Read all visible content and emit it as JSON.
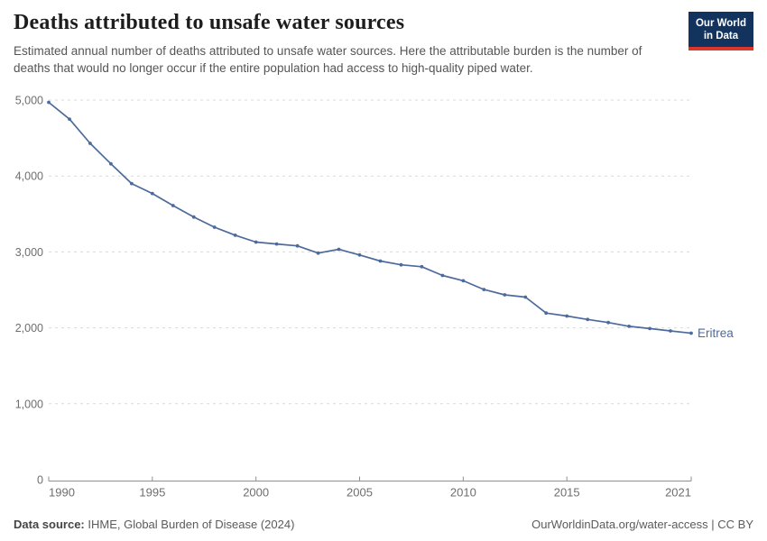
{
  "header": {
    "title": "Deaths attributed to unsafe water sources",
    "subtitle": "Estimated annual number of deaths attributed to unsafe water sources. Here the attributable burden is the number of deaths that would no longer occur if the entire population had access to high-quality piped water.",
    "logo": {
      "line1": "Our World",
      "line2": "in Data"
    }
  },
  "chart_data": {
    "type": "line",
    "title": "Deaths attributed to unsafe water sources",
    "x": [
      1990,
      1991,
      1992,
      1993,
      1994,
      1995,
      1996,
      1997,
      1998,
      1999,
      2000,
      2001,
      2002,
      2003,
      2004,
      2005,
      2006,
      2007,
      2008,
      2009,
      2010,
      2011,
      2012,
      2013,
      2014,
      2015,
      2016,
      2017,
      2018,
      2019,
      2020,
      2021
    ],
    "series": [
      {
        "name": "Eritrea",
        "color": "#4c6a9c",
        "values": [
          4970,
          4750,
          4430,
          4160,
          3900,
          3770,
          3610,
          3460,
          3325,
          3220,
          3130,
          3105,
          3080,
          2985,
          3035,
          2960,
          2880,
          2830,
          2805,
          2690,
          2620,
          2505,
          2435,
          2405,
          2195,
          2155,
          2110,
          2070,
          2020,
          1990,
          1960,
          1930
        ]
      }
    ],
    "end_label": "Eritrea",
    "xlabel": "",
    "ylabel": "",
    "ylim": [
      0,
      5000
    ],
    "xlim": [
      1990,
      2021
    ],
    "yticks": [
      0,
      1000,
      2000,
      3000,
      4000,
      5000
    ],
    "ytick_labels": [
      "0",
      "1,000",
      "2,000",
      "3,000",
      "4,000",
      "5,000"
    ],
    "xticks": [
      1990,
      1995,
      2000,
      2005,
      2010,
      2015,
      2021
    ],
    "xtick_labels": [
      "1990",
      "1995",
      "2000",
      "2005",
      "2010",
      "2015",
      "2021"
    ],
    "grid": "horizontal-dashed",
    "legend_position": "end-of-line"
  },
  "footer": {
    "data_source_label": "Data source:",
    "data_source_value": "IHME, Global Burden of Disease (2024)",
    "credit": "OurWorldinData.org/water-access | CC BY"
  },
  "colors": {
    "line": "#4c6a9c",
    "grid": "#d9d9d9",
    "axis": "#8f8f8f",
    "tick_text": "#6e6e6e",
    "logo_bg": "#12335e",
    "logo_red": "#dc352b"
  }
}
